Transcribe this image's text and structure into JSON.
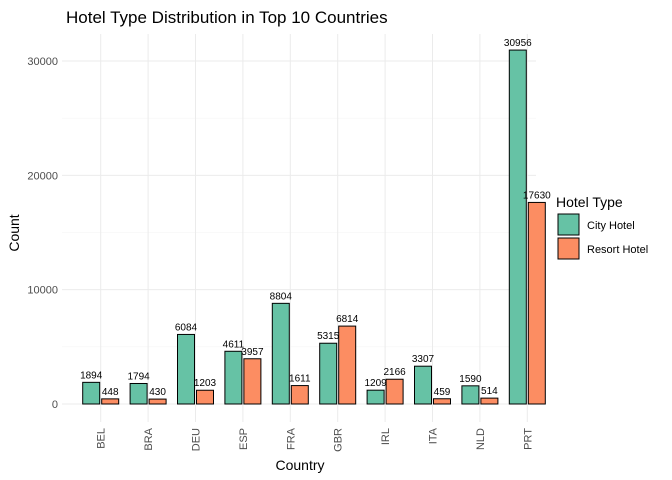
{
  "chart_data": {
    "type": "bar",
    "title": "Hotel Type Distribution in Top 10 Countries",
    "xlabel": "Country",
    "ylabel": "Count",
    "categories": [
      "BEL",
      "BRA",
      "DEU",
      "ESP",
      "FRA",
      "GBR",
      "IRL",
      "ITA",
      "NLD",
      "PRT"
    ],
    "series": [
      {
        "name": "City Hotel",
        "color": "#66c2a5",
        "values": [
          1894,
          1794,
          6084,
          4611,
          8804,
          5315,
          1209,
          3307,
          1590,
          30956
        ]
      },
      {
        "name": "Resort Hotel",
        "color": "#fc8d62",
        "values": [
          448,
          430,
          1203,
          3957,
          1611,
          6814,
          2166,
          459,
          514,
          17630
        ]
      }
    ],
    "ylim": [
      0,
      32500
    ],
    "yticks": [
      0,
      10000,
      20000,
      30000
    ],
    "grid": true,
    "legend": {
      "title": "Hotel Type",
      "position": "right"
    }
  }
}
